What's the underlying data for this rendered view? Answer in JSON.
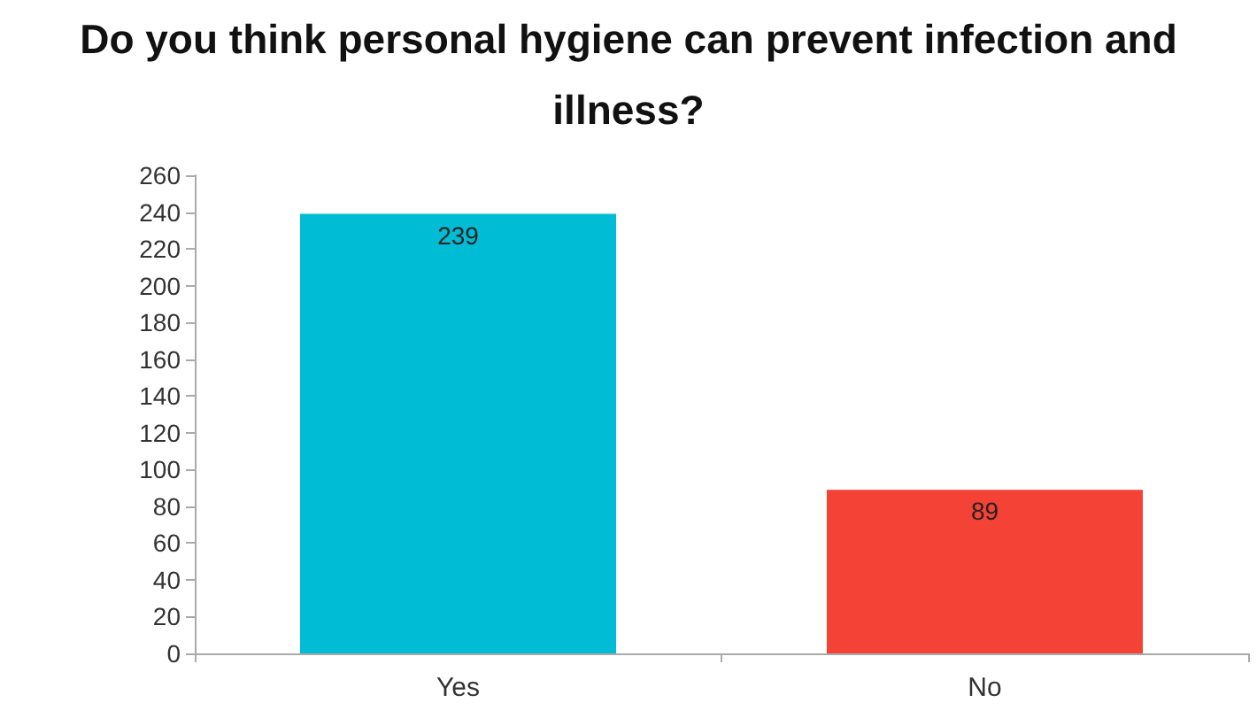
{
  "chart_data": {
    "type": "bar",
    "title": "Do you think personal hygiene can prevent infection and illness?",
    "categories": [
      "Yes",
      "No"
    ],
    "values": [
      239,
      89
    ],
    "colors": [
      "#00bcd4",
      "#f44336"
    ],
    "ylim": [
      0,
      260
    ],
    "yticks": [
      0,
      20,
      40,
      60,
      80,
      100,
      120,
      140,
      160,
      180,
      200,
      220,
      240,
      260
    ],
    "grid": false,
    "data_labels": true
  }
}
